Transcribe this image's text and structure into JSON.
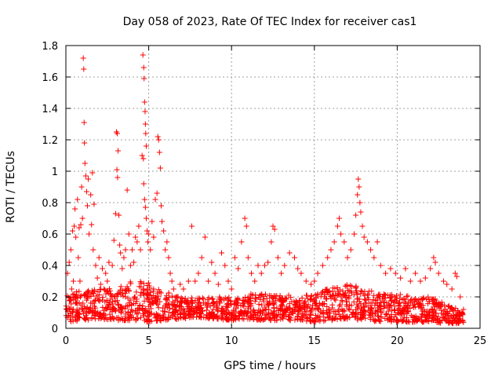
{
  "chart_data": {
    "type": "scatter",
    "title": "Day 058 of 2023, Rate Of TEC Index for receiver cas1",
    "xlabel": "GPS time / hours",
    "ylabel": "ROTI / TECUs",
    "xlim": [
      0,
      25
    ],
    "ylim": [
      0,
      1.8
    ],
    "xticks": [
      0,
      5,
      10,
      15,
      20,
      25
    ],
    "xtick_labels": [
      "0",
      "5",
      "10",
      "15",
      "20",
      "25"
    ],
    "yticks": [
      0,
      0.2,
      0.4,
      0.6,
      0.8,
      1.0,
      1.2,
      1.4,
      1.6,
      1.8
    ],
    "ytick_labels": [
      "0",
      "0.2",
      "0.4",
      "0.6",
      "0.8",
      "1",
      "1.2",
      "1.4",
      "1.6",
      "1.8"
    ],
    "grid": true,
    "marker": "+",
    "color": "#ff0000",
    "series": [
      {
        "name": "ROTI",
        "points": [
          [
            0.05,
            0.12
          ],
          [
            0.1,
            0.35
          ],
          [
            0.15,
            0.08
          ],
          [
            0.2,
            0.42
          ],
          [
            0.25,
            0.18
          ],
          [
            0.3,
            0.5
          ],
          [
            0.35,
            0.25
          ],
          [
            0.4,
            0.62
          ],
          [
            0.45,
            0.3
          ],
          [
            0.5,
            0.65
          ],
          [
            0.55,
            0.76
          ],
          [
            0.6,
            0.58
          ],
          [
            0.65,
            0.2
          ],
          [
            0.7,
            0.82
          ],
          [
            0.75,
            0.45
          ],
          [
            0.8,
            0.64
          ],
          [
            0.85,
            0.3
          ],
          [
            0.9,
            0.66
          ],
          [
            0.95,
            0.9
          ],
          [
            1.0,
            0.7
          ],
          [
            1.05,
            1.72
          ],
          [
            1.08,
            1.65
          ],
          [
            1.1,
            1.31
          ],
          [
            1.12,
            1.18
          ],
          [
            1.15,
            1.05
          ],
          [
            1.2,
            0.97
          ],
          [
            1.25,
            0.87
          ],
          [
            1.3,
            0.78
          ],
          [
            1.35,
            0.95
          ],
          [
            1.4,
            0.6
          ],
          [
            1.5,
            0.85
          ],
          [
            1.55,
            0.66
          ],
          [
            1.6,
            0.99
          ],
          [
            1.65,
            0.5
          ],
          [
            1.7,
            0.79
          ],
          [
            1.8,
            0.4
          ],
          [
            1.9,
            0.32
          ],
          [
            2.0,
            0.45
          ],
          [
            2.1,
            0.28
          ],
          [
            2.2,
            0.38
          ],
          [
            2.3,
            0.25
          ],
          [
            2.4,
            0.35
          ],
          [
            2.5,
            0.3
          ],
          [
            2.6,
            0.42
          ],
          [
            2.7,
            0.22
          ],
          [
            2.8,
            0.4
          ],
          [
            2.9,
            0.56
          ],
          [
            3.0,
            0.73
          ],
          [
            3.05,
            1.25
          ],
          [
            3.1,
            1.24
          ],
          [
            3.15,
            1.13
          ],
          [
            3.08,
            1.01
          ],
          [
            3.12,
            0.96
          ],
          [
            3.2,
            0.72
          ],
          [
            3.25,
            0.53
          ],
          [
            3.3,
            0.48
          ],
          [
            3.4,
            0.38
          ],
          [
            3.5,
            0.45
          ],
          [
            3.6,
            0.5
          ],
          [
            3.7,
            0.88
          ],
          [
            3.8,
            0.6
          ],
          [
            3.9,
            0.4
          ],
          [
            4.0,
            0.5
          ],
          [
            4.1,
            0.42
          ],
          [
            4.2,
            0.58
          ],
          [
            4.3,
            0.55
          ],
          [
            4.4,
            0.65
          ],
          [
            4.5,
            0.5
          ],
          [
            4.6,
            1.1
          ],
          [
            4.65,
            1.74
          ],
          [
            4.7,
            1.66
          ],
          [
            4.72,
            1.59
          ],
          [
            4.75,
            1.44
          ],
          [
            4.78,
            1.38
          ],
          [
            4.8,
            1.3
          ],
          [
            4.82,
            1.24
          ],
          [
            4.85,
            1.16
          ],
          [
            4.68,
            1.08
          ],
          [
            4.7,
            0.92
          ],
          [
            4.75,
            0.82
          ],
          [
            4.8,
            0.77
          ],
          [
            4.85,
            0.7
          ],
          [
            4.9,
            0.62
          ],
          [
            4.95,
            0.55
          ],
          [
            5.0,
            0.6
          ],
          [
            5.1,
            0.5
          ],
          [
            5.2,
            0.68
          ],
          [
            5.3,
            0.58
          ],
          [
            5.4,
            0.82
          ],
          [
            5.5,
            0.86
          ],
          [
            5.55,
            1.22
          ],
          [
            5.6,
            1.2
          ],
          [
            5.65,
            1.12
          ],
          [
            5.7,
            1.02
          ],
          [
            5.75,
            0.78
          ],
          [
            5.8,
            0.68
          ],
          [
            5.9,
            0.62
          ],
          [
            6.0,
            0.5
          ],
          [
            6.1,
            0.55
          ],
          [
            6.2,
            0.45
          ],
          [
            6.3,
            0.35
          ],
          [
            6.4,
            0.3
          ],
          [
            6.5,
            0.25
          ],
          [
            6.7,
            0.2
          ],
          [
            6.9,
            0.28
          ],
          [
            7.1,
            0.25
          ],
          [
            7.4,
            0.3
          ],
          [
            7.6,
            0.65
          ],
          [
            7.8,
            0.3
          ],
          [
            8.0,
            0.35
          ],
          [
            8.2,
            0.45
          ],
          [
            8.4,
            0.58
          ],
          [
            8.6,
            0.3
          ],
          [
            8.8,
            0.42
          ],
          [
            9.0,
            0.35
          ],
          [
            9.2,
            0.28
          ],
          [
            9.4,
            0.48
          ],
          [
            9.6,
            0.4
          ],
          [
            9.8,
            0.3
          ],
          [
            10.0,
            0.25
          ],
          [
            10.2,
            0.45
          ],
          [
            10.4,
            0.38
          ],
          [
            10.6,
            0.55
          ],
          [
            10.8,
            0.7
          ],
          [
            10.9,
            0.65
          ],
          [
            11.0,
            0.45
          ],
          [
            11.2,
            0.35
          ],
          [
            11.4,
            0.3
          ],
          [
            11.6,
            0.4
          ],
          [
            11.8,
            0.35
          ],
          [
            12.0,
            0.4
          ],
          [
            12.2,
            0.42
          ],
          [
            12.4,
            0.55
          ],
          [
            12.5,
            0.65
          ],
          [
            12.6,
            0.63
          ],
          [
            12.8,
            0.45
          ],
          [
            13.0,
            0.35
          ],
          [
            13.2,
            0.4
          ],
          [
            13.5,
            0.48
          ],
          [
            13.8,
            0.45
          ],
          [
            14.0,
            0.38
          ],
          [
            14.2,
            0.35
          ],
          [
            14.5,
            0.3
          ],
          [
            14.8,
            0.28
          ],
          [
            15.0,
            0.3
          ],
          [
            15.2,
            0.35
          ],
          [
            15.5,
            0.4
          ],
          [
            15.8,
            0.45
          ],
          [
            16.0,
            0.5
          ],
          [
            16.2,
            0.55
          ],
          [
            16.4,
            0.65
          ],
          [
            16.5,
            0.7
          ],
          [
            16.6,
            0.6
          ],
          [
            16.8,
            0.55
          ],
          [
            17.0,
            0.45
          ],
          [
            17.2,
            0.5
          ],
          [
            17.4,
            0.6
          ],
          [
            17.5,
            0.72
          ],
          [
            17.6,
            0.85
          ],
          [
            17.65,
            0.95
          ],
          [
            17.7,
            0.9
          ],
          [
            17.75,
            0.8
          ],
          [
            17.8,
            0.74
          ],
          [
            17.9,
            0.65
          ],
          [
            18.0,
            0.58
          ],
          [
            18.2,
            0.55
          ],
          [
            18.4,
            0.5
          ],
          [
            18.6,
            0.45
          ],
          [
            18.8,
            0.55
          ],
          [
            19.0,
            0.4
          ],
          [
            19.3,
            0.35
          ],
          [
            19.6,
            0.38
          ],
          [
            19.9,
            0.35
          ],
          [
            20.2,
            0.32
          ],
          [
            20.5,
            0.38
          ],
          [
            20.8,
            0.3
          ],
          [
            21.1,
            0.35
          ],
          [
            21.4,
            0.3
          ],
          [
            21.7,
            0.32
          ],
          [
            22.0,
            0.38
          ],
          [
            22.2,
            0.45
          ],
          [
            22.3,
            0.42
          ],
          [
            22.5,
            0.35
          ],
          [
            22.8,
            0.3
          ],
          [
            23.0,
            0.28
          ],
          [
            23.3,
            0.25
          ],
          [
            23.5,
            0.35
          ],
          [
            23.6,
            0.33
          ],
          [
            23.8,
            0.2
          ],
          [
            24.0,
            0.12
          ]
        ],
        "baseline_bands": [
          [
            0,
            0.04,
            0.22
          ],
          [
            1,
            0.05,
            0.24
          ],
          [
            2,
            0.06,
            0.25
          ],
          [
            3,
            0.05,
            0.26
          ],
          [
            4,
            0.05,
            0.3
          ],
          [
            5,
            0.04,
            0.3
          ],
          [
            6,
            0.05,
            0.24
          ],
          [
            7,
            0.06,
            0.2
          ],
          [
            8,
            0.07,
            0.2
          ],
          [
            9,
            0.06,
            0.2
          ],
          [
            10,
            0.05,
            0.2
          ],
          [
            11,
            0.06,
            0.22
          ],
          [
            12,
            0.05,
            0.22
          ],
          [
            13,
            0.05,
            0.22
          ],
          [
            14,
            0.05,
            0.2
          ],
          [
            15,
            0.04,
            0.22
          ],
          [
            16,
            0.05,
            0.26
          ],
          [
            17,
            0.06,
            0.28
          ],
          [
            18,
            0.05,
            0.26
          ],
          [
            19,
            0.04,
            0.22
          ],
          [
            20,
            0.04,
            0.22
          ],
          [
            21,
            0.04,
            0.2
          ],
          [
            22,
            0.04,
            0.2
          ],
          [
            23,
            0.03,
            0.16
          ],
          [
            24,
            0.03,
            0.1
          ]
        ]
      }
    ]
  }
}
